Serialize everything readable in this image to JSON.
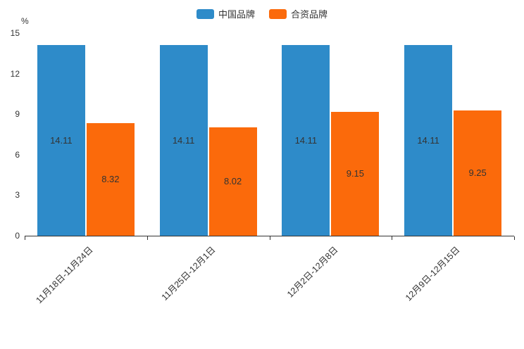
{
  "chart_data": {
    "type": "bar",
    "title": "",
    "categories": [
      "11月18日-11月24日",
      "11月25日-12月1日",
      "12月2日-12月8日",
      "12月9日-12月15日"
    ],
    "series": [
      {
        "name": "中国品牌",
        "color": "#2e8bc9",
        "values": [
          14.11,
          14.11,
          14.11,
          14.11
        ]
      },
      {
        "name": "合资品牌",
        "color": "#fb6a0b",
        "values": [
          8.32,
          8.02,
          9.15,
          9.25
        ]
      }
    ],
    "xlabel": "",
    "ylabel": "%",
    "ylim": [
      0,
      15
    ],
    "yticks": [
      0,
      3,
      6,
      9,
      12,
      15
    ],
    "legend_position": "top",
    "grid": false,
    "bar_label_position": "inside-middle",
    "value_label_color": "#333333",
    "axis_color": "#333333",
    "x_label_rotation": 45
  }
}
